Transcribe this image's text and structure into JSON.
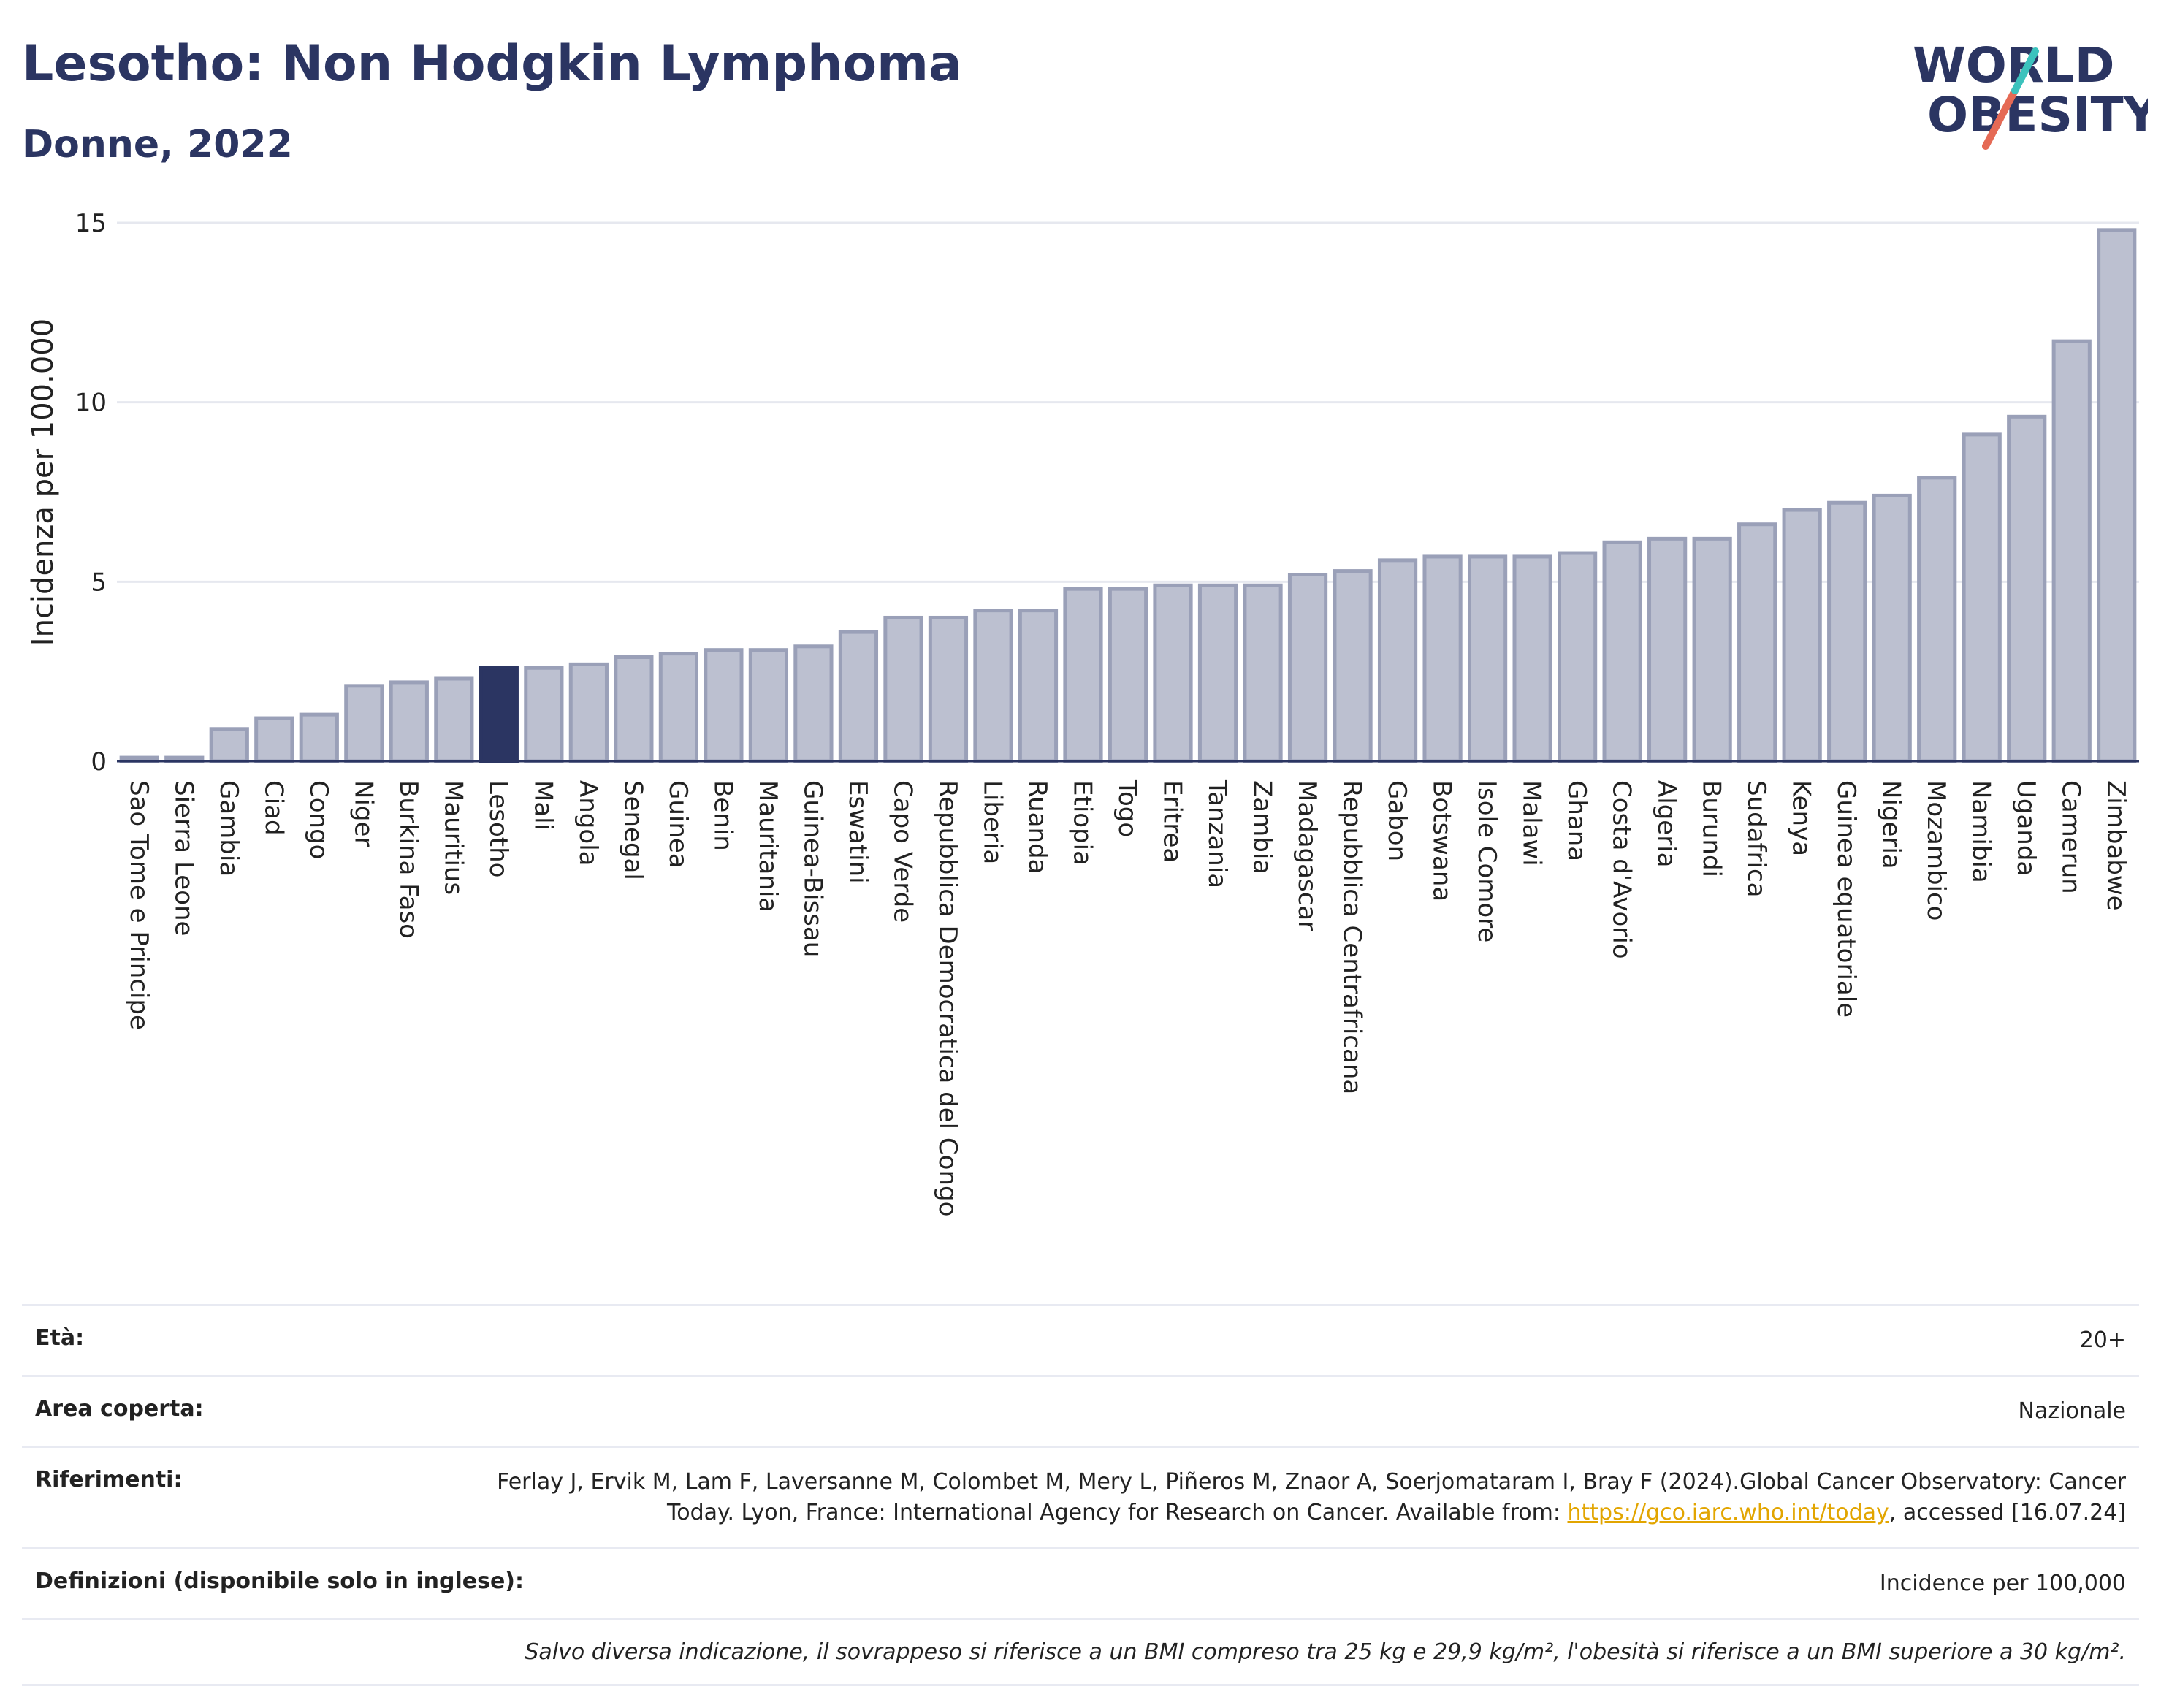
{
  "header": {
    "title": "Lesotho: Non Hodgkin Lymphoma",
    "subtitle": "Donne, 2022"
  },
  "logo": {
    "line1": "WORLD",
    "line2": "OBESITY"
  },
  "colors": {
    "bar": "#bcc0d0",
    "bar_stroke": "#9aa0b8",
    "highlight": "#2b3562",
    "title": "#2b3562",
    "grid": "#e6e8ef",
    "link": "#e2a500"
  },
  "chart_data": {
    "type": "bar",
    "ylabel": "Incidenza per 100.000",
    "ylim": [
      0,
      15
    ],
    "yticks": [
      0,
      5,
      10,
      15
    ],
    "highlight": "Lesotho",
    "grid": true,
    "categories": [
      "Sao Tome e Principe",
      "Sierra Leone",
      "Gambia",
      "Ciad",
      "Congo",
      "Niger",
      "Burkina Faso",
      "Mauritius",
      "Lesotho",
      "Mali",
      "Angola",
      "Senegal",
      "Guinea",
      "Benin",
      "Mauritania",
      "Guinea-Bissau",
      "Eswatini",
      "Capo Verde",
      "Repubblica Democratica del Congo",
      "Liberia",
      "Ruanda",
      "Etiopia",
      "Togo",
      "Eritrea",
      "Tanzania",
      "Zambia",
      "Madagascar",
      "Repubblica Centrafricana",
      "Gabon",
      "Botswana",
      "Isole Comore",
      "Malawi",
      "Ghana",
      "Costa d'Avorio",
      "Algeria",
      "Burundi",
      "Sudafrica",
      "Kenya",
      "Guinea equatoriale",
      "Nigeria",
      "Mozambico",
      "Namibia",
      "Uganda",
      "Camerun",
      "Zimbabwe"
    ],
    "values": [
      0.1,
      0.1,
      0.9,
      1.2,
      1.3,
      2.1,
      2.2,
      2.3,
      2.6,
      2.6,
      2.7,
      2.9,
      3.0,
      3.1,
      3.1,
      3.2,
      3.6,
      4.0,
      4.0,
      4.2,
      4.2,
      4.8,
      4.8,
      4.9,
      4.9,
      4.9,
      5.2,
      5.3,
      5.6,
      5.7,
      5.7,
      5.7,
      5.8,
      6.1,
      6.2,
      6.2,
      6.6,
      7.0,
      7.2,
      7.4,
      7.9,
      9.1,
      9.6,
      11.7,
      14.8
    ]
  },
  "info": {
    "age_label": "Età:",
    "age_value": "20+",
    "area_label": "Area coperta:",
    "area_value": "Nazionale",
    "ref_label": "Riferimenti:",
    "ref_text": "Ferlay J, Ervik M, Lam F, Laversanne M, Colombet M, Mery L, Piñeros M, Znaor A, Soerjomataram I, Bray F (2024).Global Cancer Observatory: Cancer Today. Lyon, France: International Agency for Research on Cancer. Available from: ",
    "ref_link": "https://gco.iarc.who.int/today",
    "ref_tail": ", accessed [16.07.24]",
    "def_label": "Definizioni (disponibile solo in inglese):",
    "def_value": "Incidence per 100,000",
    "note": "Salvo diversa indicazione, il sovrappeso si riferisce a un BMI compreso tra 25 kg e 29,9 kg/m², l'obesità si riferisce a un BMI superiore a 30 kg/m²."
  }
}
